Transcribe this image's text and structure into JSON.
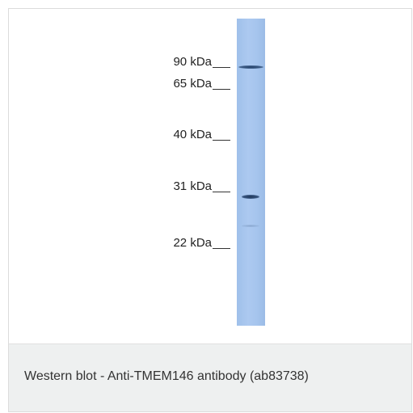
{
  "blot": {
    "markers": [
      {
        "label": "90 kDa"
      },
      {
        "label": "65 kDa"
      },
      {
        "label": "40 kDa"
      },
      {
        "label": "31 kDa"
      },
      {
        "label": "22 kDa"
      }
    ],
    "colors": {
      "lane": "#a6c5ee",
      "band_dark": "#2e4a6e",
      "band_faint": "#7f9fc8"
    }
  },
  "caption": {
    "text": "Western blot - Anti-TMEM146 antibody (ab83738)"
  }
}
